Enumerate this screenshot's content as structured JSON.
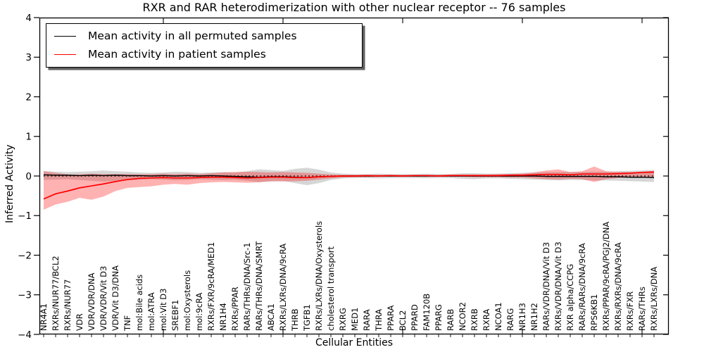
{
  "legend": {
    "items": [
      {
        "label": "Mean activity in all permuted samples",
        "color": "#000000"
      },
      {
        "label": "Mean activity in patient samples",
        "color": "#ff0000"
      }
    ]
  },
  "chart_data": {
    "type": "line",
    "title": "RXR and RAR heterodimerization with other nuclear receptor -- 76 samples",
    "xlabel": "Cellular Entities",
    "ylabel": "Inferred Activity",
    "ylim": [
      -4,
      4
    ],
    "yticks": [
      -4,
      -3,
      -2,
      -1,
      0,
      1,
      2,
      3,
      4
    ],
    "grid": false,
    "legend_position": "upper left",
    "categories": [
      "NR4A1",
      "RXRs/NUR77/BCL2",
      "RXRs/NUR77",
      "VDR",
      "VDR/VDR/DNA",
      "VDR/VDR/Vit D3",
      "VDR/Vit D3/DNA",
      "TNF",
      "mol:Bile acids",
      "mol:ATRA",
      "mol:Vit D3",
      "SREBF1",
      "mol:Oxysterols",
      "mol:9cRA",
      "RXRs/FXR/9cRA/MED1",
      "NR1H4",
      "RXRs/PPAR",
      "RARs/THRs/DNA/Src-1",
      "RARs/THRs/DNA/SMRT",
      "ABCA1",
      "RXRs/LXRs/DNA/9cRA",
      "THRB",
      "TGFB1",
      "RXRs/LXRs/DNA/Oxysterols",
      "cholesterol transport",
      "RXRG",
      "MED1",
      "RARA",
      "THRA",
      "PPARA",
      "BCL2",
      "PPARD",
      "FAM120B",
      "PPARG",
      "RARB",
      "NCOR2",
      "RXRB",
      "RXRA",
      "NCOA1",
      "RARG",
      "NR1H3",
      "NR1H2",
      "RARs/VDR/DNA/Vit D3",
      "RXRs/VDR/DNA/Vit D3",
      "RXR alpha/CCPG",
      "RARs/RARs/DNA/9cRA",
      "RPS6KB1",
      "RXRs/PPAR/9cRA/PGJ2/DNA",
      "RXRs/RXRs/DNA/9cRA",
      "RXRs/FXR",
      "RARs/THRs",
      "RXRs/LXRs/DNA"
    ],
    "series": [
      {
        "name": "Mean activity in all permuted samples",
        "color": "#000000",
        "style": "solid",
        "width": 1.5,
        "values": [
          0.03,
          0.02,
          0.02,
          0.01,
          0.02,
          0.01,
          0.02,
          0.01,
          0.01,
          0.0,
          0.01,
          0.0,
          0.01,
          0.0,
          0.01,
          0.0,
          -0.01,
          -0.02,
          -0.03,
          -0.02,
          -0.02,
          -0.03,
          -0.04,
          -0.02,
          -0.01,
          0.0,
          0.0,
          0.0,
          0.0,
          0.0,
          0.0,
          0.0,
          0.0,
          0.0,
          0.0,
          0.0,
          0.0,
          0.0,
          0.0,
          0.0,
          0.0,
          0.0,
          -0.01,
          -0.01,
          -0.01,
          -0.01,
          -0.01,
          -0.02,
          -0.02,
          -0.03,
          -0.03,
          -0.04
        ]
      },
      {
        "name": "Mean activity in patient samples",
        "color": "#ff0000",
        "style": "solid",
        "width": 1.7,
        "values": [
          -0.58,
          -0.45,
          -0.38,
          -0.3,
          -0.25,
          -0.2,
          -0.14,
          -0.09,
          -0.06,
          -0.05,
          -0.04,
          -0.05,
          -0.05,
          -0.04,
          -0.03,
          -0.03,
          -0.04,
          -0.05,
          -0.04,
          -0.03,
          -0.03,
          -0.04,
          -0.04,
          -0.02,
          -0.01,
          0.0,
          0.0,
          0.01,
          0.0,
          0.01,
          0.0,
          0.01,
          0.01,
          0.0,
          0.01,
          0.01,
          0.01,
          0.01,
          0.01,
          0.02,
          0.02,
          0.03,
          0.04,
          0.04,
          0.03,
          0.05,
          0.05,
          0.05,
          0.06,
          0.07,
          0.09,
          0.1
        ]
      },
      {
        "name": "zero reference",
        "color": "#000000",
        "style": "dotted",
        "width": 1.6,
        "constant": 0
      }
    ],
    "bands": [
      {
        "name": "permuted samples range",
        "color": "rgba(128,128,128,0.32)",
        "upper": [
          0.13,
          0.11,
          0.1,
          0.11,
          0.12,
          0.14,
          0.12,
          0.11,
          0.09,
          0.08,
          0.09,
          0.11,
          0.1,
          0.08,
          0.09,
          0.1,
          0.09,
          0.12,
          0.17,
          0.15,
          0.13,
          0.18,
          0.21,
          0.16,
          0.09,
          0.06,
          0.05,
          0.05,
          0.06,
          0.05,
          0.05,
          0.05,
          0.06,
          0.05,
          0.05,
          0.07,
          0.07,
          0.06,
          0.06,
          0.07,
          0.08,
          0.09,
          0.1,
          0.1,
          0.1,
          0.1,
          0.11,
          0.11,
          0.12,
          0.13,
          0.14,
          0.15
        ],
        "lower": [
          -0.1,
          -0.09,
          -0.08,
          -0.1,
          -0.12,
          -0.14,
          -0.12,
          -0.11,
          -0.09,
          -0.08,
          -0.09,
          -0.11,
          -0.1,
          -0.08,
          -0.09,
          -0.1,
          -0.09,
          -0.12,
          -0.15,
          -0.14,
          -0.12,
          -0.18,
          -0.23,
          -0.18,
          -0.1,
          -0.06,
          -0.05,
          -0.05,
          -0.06,
          -0.05,
          -0.05,
          -0.05,
          -0.06,
          -0.05,
          -0.05,
          -0.07,
          -0.08,
          -0.06,
          -0.06,
          -0.07,
          -0.08,
          -0.09,
          -0.1,
          -0.11,
          -0.1,
          -0.1,
          -0.11,
          -0.11,
          -0.12,
          -0.13,
          -0.14,
          -0.15
        ]
      },
      {
        "name": "patient samples range",
        "color": "rgba(255,0,0,0.30)",
        "upper": [
          0.12,
          0.08,
          0.04,
          0.04,
          0.06,
          0.05,
          0.05,
          0.05,
          0.04,
          0.05,
          0.06,
          0.05,
          0.06,
          0.05,
          0.07,
          0.09,
          0.1,
          0.11,
          0.1,
          0.09,
          0.1,
          0.09,
          0.08,
          0.06,
          0.04,
          0.03,
          0.03,
          0.03,
          0.03,
          0.03,
          0.03,
          0.03,
          0.03,
          0.03,
          0.04,
          0.04,
          0.04,
          0.04,
          0.05,
          0.05,
          0.06,
          0.09,
          0.14,
          0.17,
          0.1,
          0.12,
          0.24,
          0.12,
          0.1,
          0.1,
          0.11,
          0.13
        ],
        "lower": [
          -0.85,
          -0.72,
          -0.65,
          -0.55,
          -0.6,
          -0.52,
          -0.38,
          -0.3,
          -0.28,
          -0.26,
          -0.22,
          -0.2,
          -0.22,
          -0.18,
          -0.16,
          -0.15,
          -0.16,
          -0.17,
          -0.16,
          -0.13,
          -0.14,
          -0.13,
          -0.12,
          -0.09,
          -0.06,
          -0.04,
          -0.03,
          -0.03,
          -0.02,
          -0.02,
          -0.02,
          -0.02,
          -0.02,
          -0.02,
          -0.02,
          -0.02,
          -0.03,
          -0.03,
          -0.03,
          -0.04,
          -0.04,
          -0.06,
          -0.08,
          -0.09,
          -0.07,
          -0.08,
          -0.15,
          -0.08,
          -0.05,
          -0.04,
          -0.03,
          -0.02
        ]
      }
    ]
  }
}
